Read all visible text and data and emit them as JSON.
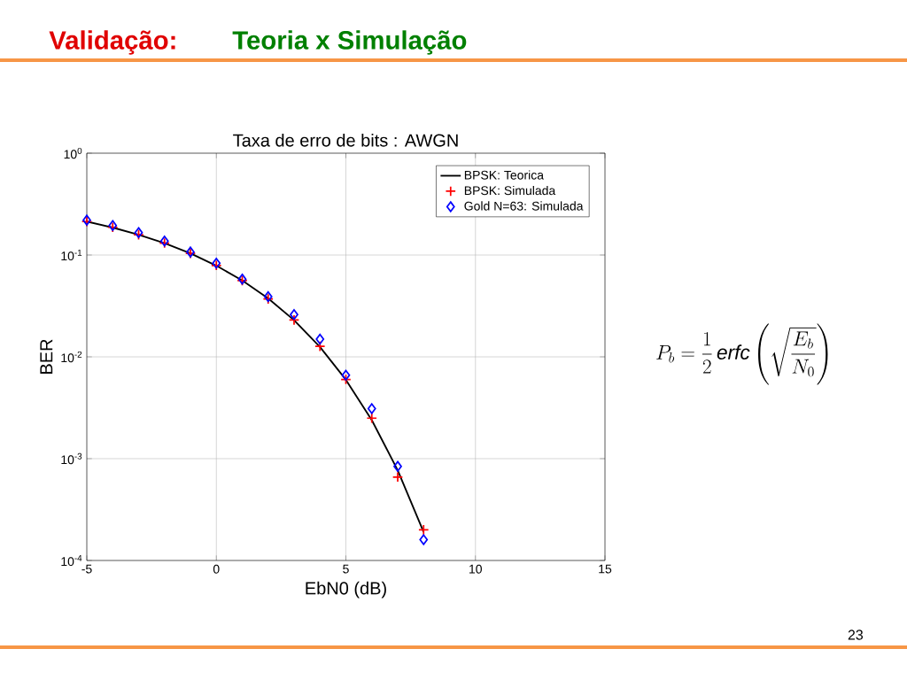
{
  "chart_data": {
    "type": "line",
    "title": "Taxa de erro de bits :  AWGN",
    "xlabel": "EbN0 (dB)",
    "ylabel": "BER",
    "x": [
      -5,
      -4,
      -3,
      -2,
      -1,
      0,
      1,
      2,
      3,
      4,
      5,
      6,
      7,
      8
    ],
    "series": [
      {
        "name": "BPSK: Teorica",
        "color": "#000000",
        "marker": "none",
        "values": [
          0.213,
          0.186,
          0.158,
          0.131,
          0.104,
          0.0786,
          0.0563,
          0.0375,
          0.0229,
          0.0125,
          0.00595,
          0.00239,
          0.00077,
          0.00019
        ]
      },
      {
        "name": "BPSK: Simulada",
        "type": "scatter",
        "color": "#ff0000",
        "marker": "cross",
        "values": [
          0.213,
          0.187,
          0.158,
          0.131,
          0.104,
          0.079,
          0.056,
          0.037,
          0.023,
          0.0127,
          0.006,
          0.0025,
          0.00066,
          0.0002
        ]
      },
      {
        "name": "Gold N=63: Simulada",
        "type": "scatter",
        "color": "#0000ff",
        "marker": "diamond",
        "values": [
          0.22,
          0.195,
          0.166,
          0.137,
          0.107,
          0.083,
          0.058,
          0.039,
          0.026,
          0.0149,
          0.0066,
          0.0031,
          0.00084,
          0.00016
        ]
      }
    ],
    "log": "y",
    "xlim": [
      -5,
      15
    ],
    "ylim": [
      0.0001,
      1
    ],
    "xticks": [
      -5,
      0,
      5,
      10,
      15
    ],
    "yticks": [
      {
        "value": 1,
        "label": "10$^{0}$"
      },
      {
        "value": 0.1,
        "label": "10$^{-1}$"
      },
      {
        "value": 0.01,
        "label": "10$^{-2}$"
      },
      {
        "value": 0.001,
        "label": "10$^{-3}$"
      },
      {
        "value": 0.0001,
        "label": "10$^{-4}$"
      }
    ],
    "grid": true,
    "legend": "top right",
    "annotations": [
      "Validação:",
      "Teoria x Simulação",
      "P_b = \\frac{1}{2}\\,\\mathbf{\\mathit{erfc}}\\left(\\sqrt{\\frac{E_b}{N_0}}\\right)",
      "23"
    ]
  }
}
